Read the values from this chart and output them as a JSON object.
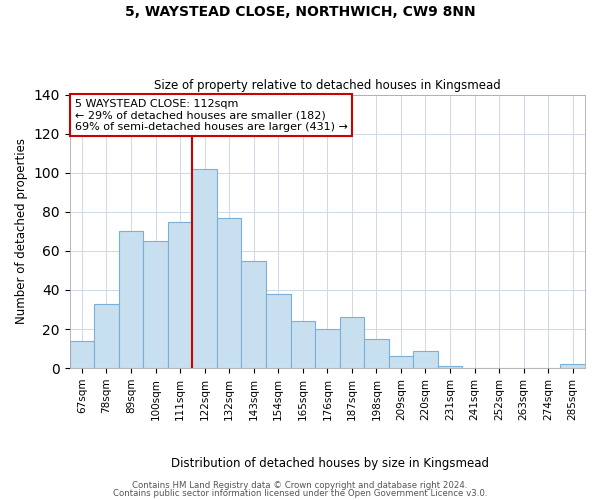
{
  "title": "5, WAYSTEAD CLOSE, NORTHWICH, CW9 8NN",
  "subtitle": "Size of property relative to detached houses in Kingsmead",
  "xlabel": "Distribution of detached houses by size in Kingsmead",
  "ylabel": "Number of detached properties",
  "bar_labels": [
    "67sqm",
    "78sqm",
    "89sqm",
    "100sqm",
    "111sqm",
    "122sqm",
    "132sqm",
    "143sqm",
    "154sqm",
    "165sqm",
    "176sqm",
    "187sqm",
    "198sqm",
    "209sqm",
    "220sqm",
    "231sqm",
    "241sqm",
    "252sqm",
    "263sqm",
    "274sqm",
    "285sqm"
  ],
  "bar_values": [
    14,
    33,
    70,
    65,
    75,
    102,
    77,
    55,
    38,
    24,
    20,
    26,
    15,
    6,
    9,
    1,
    0,
    0,
    0,
    0,
    2
  ],
  "bar_color": "#c8dff0",
  "bar_edge_color": "#7ab0d8",
  "vline_index": 4.5,
  "vline_color": "#cc0000",
  "annotation_title": "5 WAYSTEAD CLOSE: 112sqm",
  "annotation_line1": "← 29% of detached houses are smaller (182)",
  "annotation_line2": "69% of semi-detached houses are larger (431) →",
  "ylim": [
    0,
    140
  ],
  "yticks": [
    0,
    20,
    40,
    60,
    80,
    100,
    120,
    140
  ],
  "footer1": "Contains HM Land Registry data © Crown copyright and database right 2024.",
  "footer2": "Contains public sector information licensed under the Open Government Licence v3.0.",
  "background_color": "#ffffff",
  "grid_color": "#d0d8e8"
}
